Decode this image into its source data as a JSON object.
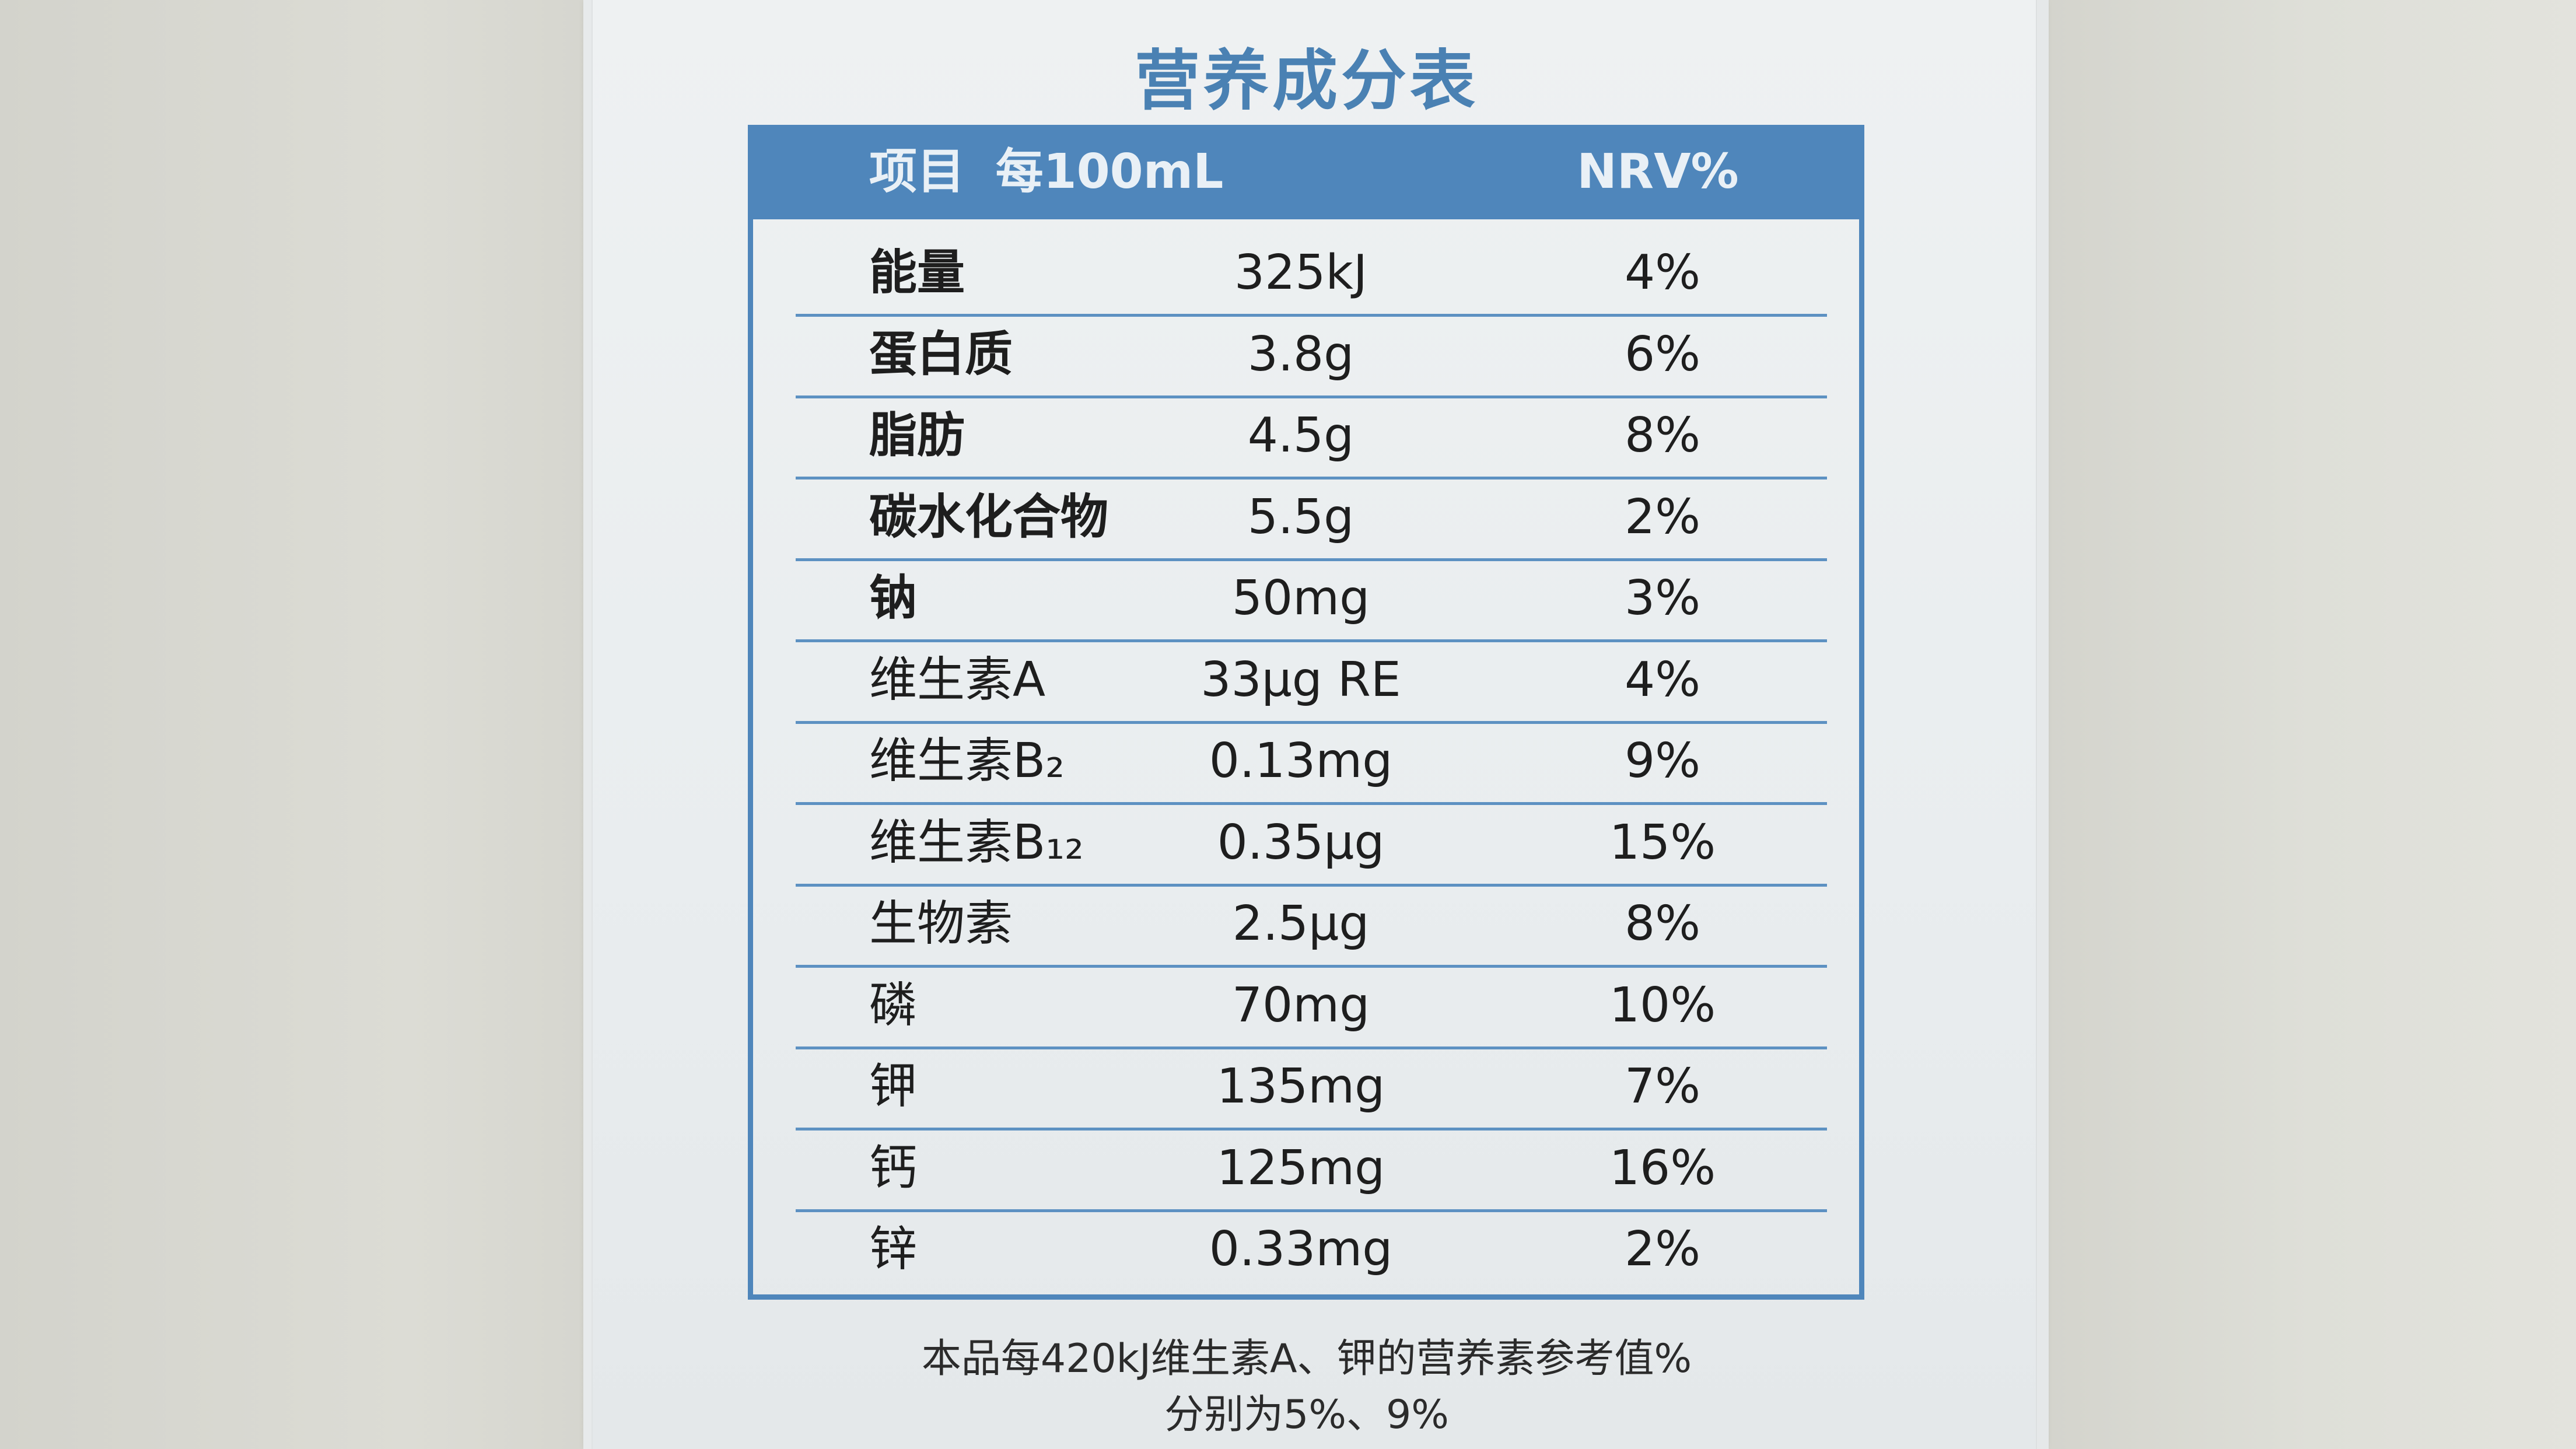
{
  "title": "营养成分表",
  "header": {
    "item": "项目",
    "per": "每100mL",
    "nrv": "NRV%"
  },
  "rows": [
    {
      "name": "能量",
      "value": "325kJ",
      "nrv": "4%",
      "bold": true
    },
    {
      "name": "蛋白质",
      "value": "3.8g",
      "nrv": "6%",
      "bold": true
    },
    {
      "name": "脂肪",
      "value": "4.5g",
      "nrv": "8%",
      "bold": true
    },
    {
      "name": "碳水化合物",
      "value": "5.5g",
      "nrv": "2%",
      "bold": true
    },
    {
      "name": "钠",
      "value": "50mg",
      "nrv": "3%",
      "bold": true
    },
    {
      "name": "维生素A",
      "value": "33μg RE",
      "nrv": "4%",
      "bold": false
    },
    {
      "name": "维生素B₂",
      "value": "0.13mg",
      "nrv": "9%",
      "bold": false
    },
    {
      "name": "维生素B₁₂",
      "value": "0.35μg",
      "nrv": "15%",
      "bold": false
    },
    {
      "name": "生物素",
      "value": "2.5μg",
      "nrv": "8%",
      "bold": false
    },
    {
      "name": "磷",
      "value": "70mg",
      "nrv": "10%",
      "bold": false
    },
    {
      "name": "钾",
      "value": "135mg",
      "nrv": "7%",
      "bold": false
    },
    {
      "name": "钙",
      "value": "125mg",
      "nrv": "16%",
      "bold": false
    },
    {
      "name": "锌",
      "value": "0.33mg",
      "nrv": "2%",
      "bold": false
    }
  ],
  "footnote": {
    "line1": "本品每420kJ维生素A、钾的营养素参考值%",
    "line2": "分别为5%、9%"
  },
  "colors": {
    "accent": "#4f86bb",
    "title": "#4a81b3",
    "text": "#1e1e1e"
  }
}
